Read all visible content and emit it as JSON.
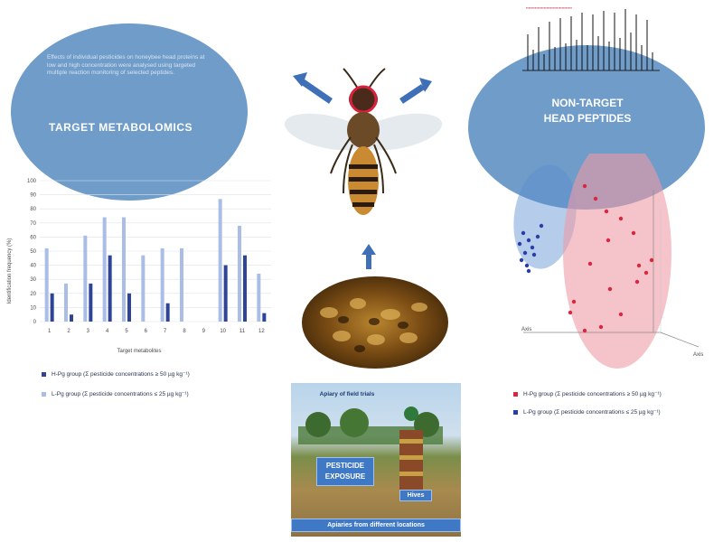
{
  "left_panel": {
    "description_text": "Effects of individual pesticides on honeybee head proteins at low and high concentration were analysed using targeted multiple reaction monitoring of selected peptides.",
    "title": "TARGET METABOLOMICS"
  },
  "right_panel": {
    "title_line1": "NON-TARGET",
    "title_line2": "HEAD PEPTIDES"
  },
  "chart_data": {
    "type": "bar",
    "categories": [
      "1",
      "2",
      "3",
      "4",
      "5",
      "6",
      "7",
      "8",
      "9",
      "10",
      "11",
      "12"
    ],
    "series": [
      {
        "name": "H-Pg group (Σ pesticide concentrations ≥ 50 µg kg⁻¹)",
        "color": "#2e4596",
        "values": [
          20,
          5,
          27,
          47,
          20,
          0,
          13,
          0,
          0,
          40,
          47,
          6
        ]
      },
      {
        "name": "L-Pg group (Σ pesticide concentrations ≤ 25 µg kg⁻¹)",
        "color": "#a9bde6",
        "values": [
          52,
          27,
          61,
          74,
          74,
          47,
          52,
          52,
          0,
          87,
          68,
          34
        ]
      }
    ],
    "ylim": [
      0,
      100
    ],
    "yticks": [
      "0",
      "10",
      "20",
      "30",
      "40",
      "50",
      "60",
      "70",
      "80",
      "90",
      "100"
    ],
    "xlabel": "Target metabolites",
    "ylabel": "Identification frequency (%)"
  },
  "bar_legend": {
    "item1": "H-Pg group (Σ pesticide concentrations ≥ 50 µg kg⁻¹)",
    "item2": "L-Pg group (Σ pesticide concentrations ≤ 25 µg kg⁻¹)"
  },
  "scatter": {
    "axis_label_1": "Axis",
    "axis_label_2": "Axis"
  },
  "scatter_legend": {
    "item1": "H-Pg group (Σ pesticide concentrations ≥ 50 µg kg⁻¹)",
    "item2": "L-Pg group (Σ pesticide concentrations ≤ 25 µg kg⁻¹)"
  },
  "field": {
    "top_label": "Apiary of field trials",
    "exposure_label_1": "PESTICIDE",
    "exposure_label_2": "EXPOSURE",
    "hive_label": "Hives",
    "bottom_label": "Apiaries from different locations"
  },
  "colors": {
    "ellipse_blue": "#6f9cc9",
    "high_group": "#d9273f",
    "low_group": "#2a3ea8"
  }
}
